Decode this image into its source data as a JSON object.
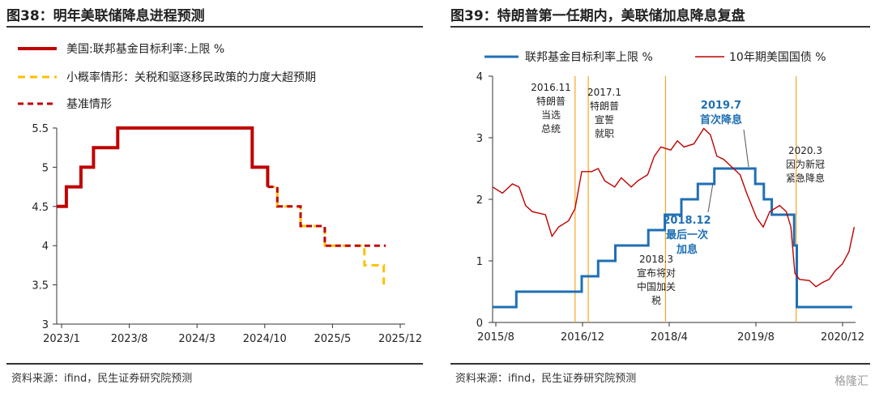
{
  "left": {
    "title": "图38：明年美联储降息进程预测",
    "source": "资料来源：ifind，民生证券研究院预测",
    "chart_data": {
      "type": "line",
      "x_tick_labels": [
        "2023/1",
        "2023/8",
        "2024/3",
        "2024/10",
        "2025/5",
        "2025/12"
      ],
      "x_range": [
        0,
        36
      ],
      "ylim": [
        3,
        5.5
      ],
      "y_ticks": [
        3,
        3.5,
        4,
        4.5,
        5,
        5.5
      ],
      "legend_placement": "top-left",
      "series": [
        {
          "name": "美国:联邦基金目标利率:上限 %",
          "color": "#c00000",
          "style": "solid",
          "points": [
            [
              0,
              4.5
            ],
            [
              1,
              4.5
            ],
            [
              1,
              4.75
            ],
            [
              2.5,
              4.75
            ],
            [
              2.5,
              5
            ],
            [
              3.8,
              5
            ],
            [
              3.8,
              5.25
            ],
            [
              6.3,
              5.25
            ],
            [
              6.3,
              5.5
            ],
            [
              20.2,
              5.5
            ],
            [
              20.2,
              5
            ],
            [
              21.8,
              5
            ],
            [
              21.8,
              4.75
            ]
          ]
        },
        {
          "name": "小概率情形：关税和驱逐移民政策的力度大超预期",
          "color": "#ffc000",
          "style": "dashed",
          "points": [
            [
              21.8,
              4.75
            ],
            [
              22.8,
              4.75
            ],
            [
              22.8,
              4.5
            ],
            [
              25.2,
              4.5
            ],
            [
              25.2,
              4.25
            ],
            [
              27.7,
              4.25
            ],
            [
              27.7,
              4
            ],
            [
              31.8,
              4
            ],
            [
              31.8,
              3.75
            ],
            [
              33.8,
              3.75
            ],
            [
              33.8,
              3.5
            ]
          ]
        },
        {
          "name": "基准情形",
          "color": "#c00000",
          "style": "dashed",
          "points": [
            [
              21.8,
              4.75
            ],
            [
              22.8,
              4.75
            ],
            [
              22.8,
              4.5
            ],
            [
              25.2,
              4.5
            ],
            [
              25.2,
              4.25
            ],
            [
              27.7,
              4.25
            ],
            [
              27.7,
              4
            ],
            [
              34,
              4
            ]
          ]
        }
      ]
    }
  },
  "right": {
    "title": "图39：特朗普第一任期内，美联储加息降息复盘",
    "source": "资料来源：ifind，民生证券研究院预测",
    "watermark": "格隆汇",
    "chart_data": {
      "type": "line",
      "x_tick_labels": [
        "2015/8",
        "2016/12",
        "2018/4",
        "2019/8",
        "2020/12"
      ],
      "x_range": [
        2015.6,
        2021.1
      ],
      "ylim": [
        0,
        4
      ],
      "y_ticks": [
        0,
        1,
        2,
        3,
        4
      ],
      "legend_placement": "top",
      "series": [
        {
          "name": "联邦基金目标利率上限 %",
          "color": "#1f6fb5",
          "style": "solid",
          "points": [
            [
              2015.6,
              0.25
            ],
            [
              2015.96,
              0.25
            ],
            [
              2015.96,
              0.5
            ],
            [
              2016.95,
              0.5
            ],
            [
              2016.95,
              0.75
            ],
            [
              2017.2,
              0.75
            ],
            [
              2017.2,
              1.0
            ],
            [
              2017.46,
              1.0
            ],
            [
              2017.46,
              1.25
            ],
            [
              2017.96,
              1.25
            ],
            [
              2017.96,
              1.5
            ],
            [
              2018.21,
              1.5
            ],
            [
              2018.21,
              1.75
            ],
            [
              2018.46,
              1.75
            ],
            [
              2018.46,
              2.0
            ],
            [
              2018.71,
              2.0
            ],
            [
              2018.71,
              2.25
            ],
            [
              2018.96,
              2.25
            ],
            [
              2018.96,
              2.5
            ],
            [
              2019.58,
              2.5
            ],
            [
              2019.58,
              2.25
            ],
            [
              2019.71,
              2.25
            ],
            [
              2019.71,
              2.0
            ],
            [
              2019.83,
              2.0
            ],
            [
              2019.83,
              1.75
            ],
            [
              2020.17,
              1.75
            ],
            [
              2020.17,
              1.25
            ],
            [
              2020.21,
              1.25
            ],
            [
              2020.21,
              0.25
            ],
            [
              2021.05,
              0.25
            ]
          ]
        },
        {
          "name": "10年期美国国债 %",
          "color": "#c00000",
          "style": "solid",
          "points": [
            [
              2015.6,
              2.2
            ],
            [
              2015.75,
              2.1
            ],
            [
              2015.9,
              2.25
            ],
            [
              2016.0,
              2.2
            ],
            [
              2016.1,
              1.9
            ],
            [
              2016.2,
              1.8
            ],
            [
              2016.4,
              1.75
            ],
            [
              2016.5,
              1.4
            ],
            [
              2016.6,
              1.55
            ],
            [
              2016.75,
              1.65
            ],
            [
              2016.85,
              1.85
            ],
            [
              2016.95,
              2.45
            ],
            [
              2017.1,
              2.45
            ],
            [
              2017.2,
              2.5
            ],
            [
              2017.3,
              2.3
            ],
            [
              2017.45,
              2.2
            ],
            [
              2017.55,
              2.35
            ],
            [
              2017.7,
              2.2
            ],
            [
              2017.8,
              2.3
            ],
            [
              2017.95,
              2.4
            ],
            [
              2018.05,
              2.7
            ],
            [
              2018.15,
              2.85
            ],
            [
              2018.3,
              2.8
            ],
            [
              2018.4,
              2.95
            ],
            [
              2018.5,
              2.85
            ],
            [
              2018.65,
              2.9
            ],
            [
              2018.8,
              3.15
            ],
            [
              2018.9,
              3.05
            ],
            [
              2019.0,
              2.7
            ],
            [
              2019.1,
              2.65
            ],
            [
              2019.25,
              2.5
            ],
            [
              2019.35,
              2.4
            ],
            [
              2019.45,
              2.1
            ],
            [
              2019.6,
              1.7
            ],
            [
              2019.7,
              1.55
            ],
            [
              2019.8,
              1.8
            ],
            [
              2019.95,
              1.9
            ],
            [
              2020.05,
              1.8
            ],
            [
              2020.12,
              1.55
            ],
            [
              2020.18,
              0.8
            ],
            [
              2020.25,
              0.7
            ],
            [
              2020.4,
              0.68
            ],
            [
              2020.5,
              0.58
            ],
            [
              2020.6,
              0.65
            ],
            [
              2020.7,
              0.7
            ],
            [
              2020.8,
              0.85
            ],
            [
              2020.9,
              0.95
            ],
            [
              2021.0,
              1.15
            ],
            [
              2021.08,
              1.55
            ]
          ]
        }
      ],
      "markers": [
        {
          "x": 2016.85,
          "label": [
            "2016.11",
            "特朗普",
            "当选",
            "总统"
          ]
        },
        {
          "x": 2017.05,
          "label": [
            "2017.1",
            "特朗普",
            "宣誓",
            "就职"
          ]
        },
        {
          "x": 2018.22,
          "label": [
            "2018.3",
            "宣布将对",
            "中国加关",
            "税"
          ]
        },
        {
          "x": 2020.2,
          "label": [
            "2020.3",
            "因为新冠",
            "紧急降息"
          ]
        }
      ],
      "highlights": [
        {
          "label": [
            "2019.7",
            "首次降息"
          ]
        },
        {
          "label": [
            "2018.12",
            "最后一次",
            "加息"
          ]
        }
      ]
    }
  }
}
